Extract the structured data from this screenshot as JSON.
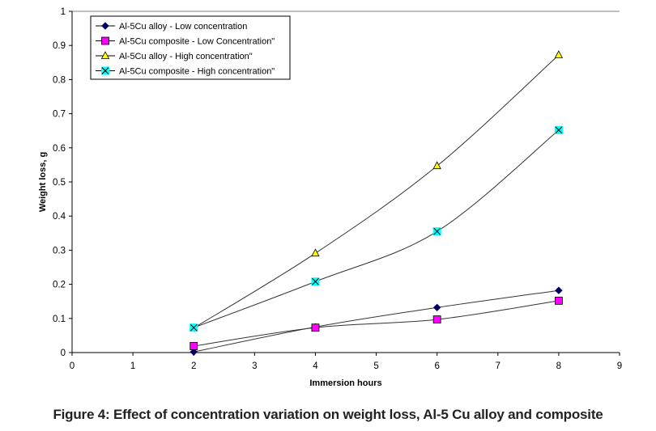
{
  "caption": "Figure 4: Effect of concentration variation on weight loss, Al-5 Cu alloy and composite",
  "chart_data": {
    "type": "line",
    "title": "",
    "xlabel": "Immersion hours",
    "ylabel": "Weight loss, g",
    "xlim": [
      0,
      9
    ],
    "ylim": [
      0,
      1
    ],
    "xticks": [
      "0",
      "1",
      "2",
      "3",
      "4",
      "5",
      "6",
      "7",
      "8",
      "9"
    ],
    "yticks": [
      "0",
      "0.1",
      "0.2",
      "0.3",
      "0.4",
      "0.5",
      "0.6",
      "0.7",
      "0.8",
      "0.9",
      "1"
    ],
    "grid": false,
    "legend_position": "top-left",
    "x": [
      2,
      4,
      6,
      8
    ],
    "series": [
      {
        "name": "Al-5Cu alloy - Low concentration",
        "values": [
          0.002,
          0.075,
          0.132,
          0.182
        ],
        "marker": "diamond",
        "color": "#000066",
        "line_color": "#333333"
      },
      {
        "name": "Al-5Cu composite - Low Concentration\"",
        "values": [
          0.019,
          0.073,
          0.097,
          0.152
        ],
        "marker": "square",
        "color": "#ff00ff",
        "line_color": "#333333"
      },
      {
        "name": "Al-5Cu alloy - High concentration\"",
        "values": [
          0.072,
          0.291,
          0.547,
          0.872
        ],
        "marker": "triangle",
        "color": "#ffff00",
        "line_color": "#333333"
      },
      {
        "name": "Al-5Cu composite - High concentration\"",
        "values": [
          0.073,
          0.208,
          0.355,
          0.652
        ],
        "marker": "x-square",
        "color": "#00ffff",
        "line_color": "#333333"
      }
    ]
  }
}
